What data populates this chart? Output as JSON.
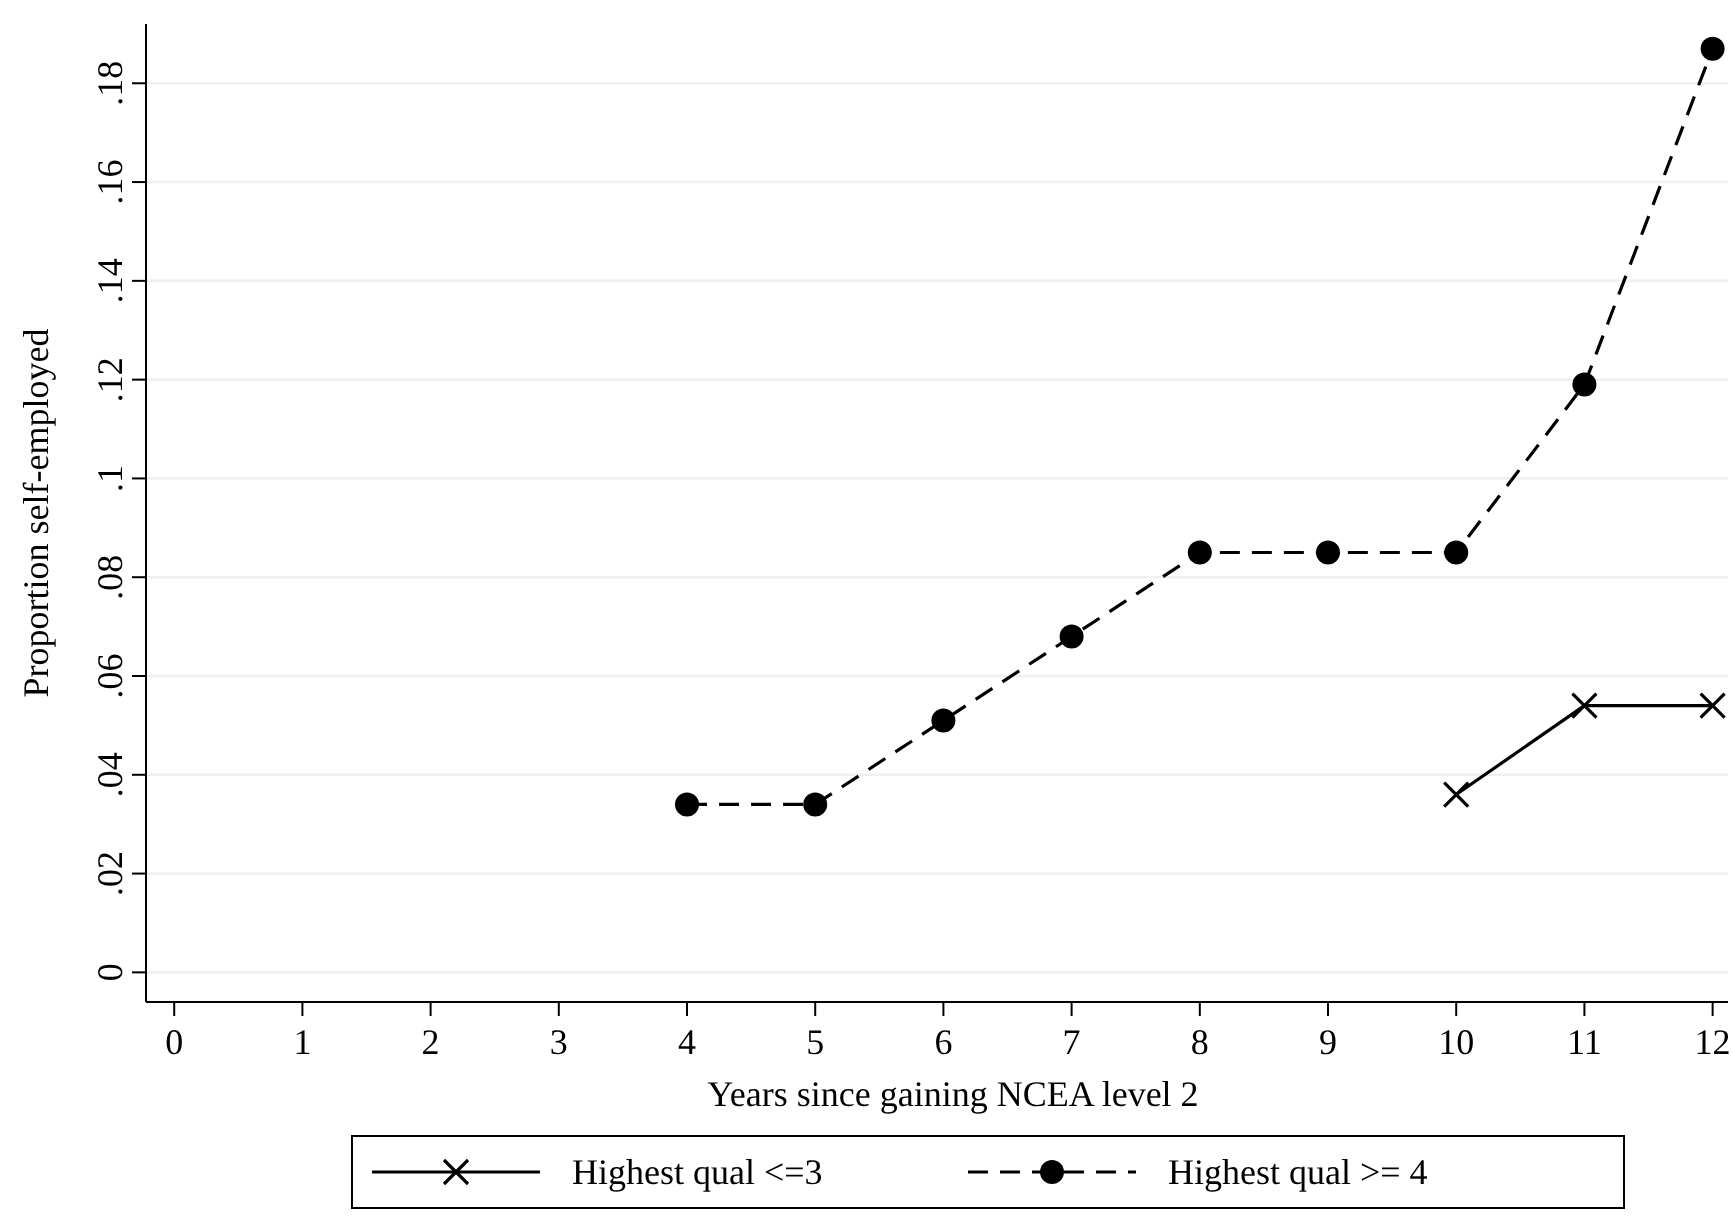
{
  "chart_data": {
    "type": "line",
    "xlabel": "Years since gaining NCEA level 2",
    "ylabel": "Proportion self-employed",
    "xlim": [
      -0.22,
      12.12
    ],
    "ylim": [
      -0.006,
      0.192
    ],
    "xticks": [
      0,
      1,
      2,
      3,
      4,
      5,
      6,
      7,
      8,
      9,
      10,
      11,
      12
    ],
    "yticks": [
      {
        "value": 0,
        "label": "0"
      },
      {
        "value": 0.02,
        "label": ".02"
      },
      {
        "value": 0.04,
        "label": ".04"
      },
      {
        "value": 0.06,
        "label": ".06"
      },
      {
        "value": 0.08,
        "label": ".08"
      },
      {
        "value": 0.1,
        "label": ".1"
      },
      {
        "value": 0.12,
        "label": ".12"
      },
      {
        "value": 0.14,
        "label": ".14"
      },
      {
        "value": 0.16,
        "label": ".16"
      },
      {
        "value": 0.18,
        "label": ".18"
      }
    ],
    "grid": "y",
    "legend": "bottom",
    "series": [
      {
        "name": "Highest qual <=3",
        "color": "#000000",
        "marker": "cross",
        "line_style": "solid",
        "x": [
          10,
          11,
          12
        ],
        "values": [
          0.036,
          0.054,
          0.054
        ]
      },
      {
        "name": "Highest qual >= 4",
        "color": "#000000",
        "marker": "circle",
        "line_style": "dashed",
        "x": [
          4,
          5,
          6,
          7,
          8,
          9,
          10,
          11,
          12
        ],
        "values": [
          0.034,
          0.034,
          0.051,
          0.068,
          0.085,
          0.085,
          0.085,
          0.119,
          0.187
        ]
      }
    ]
  }
}
